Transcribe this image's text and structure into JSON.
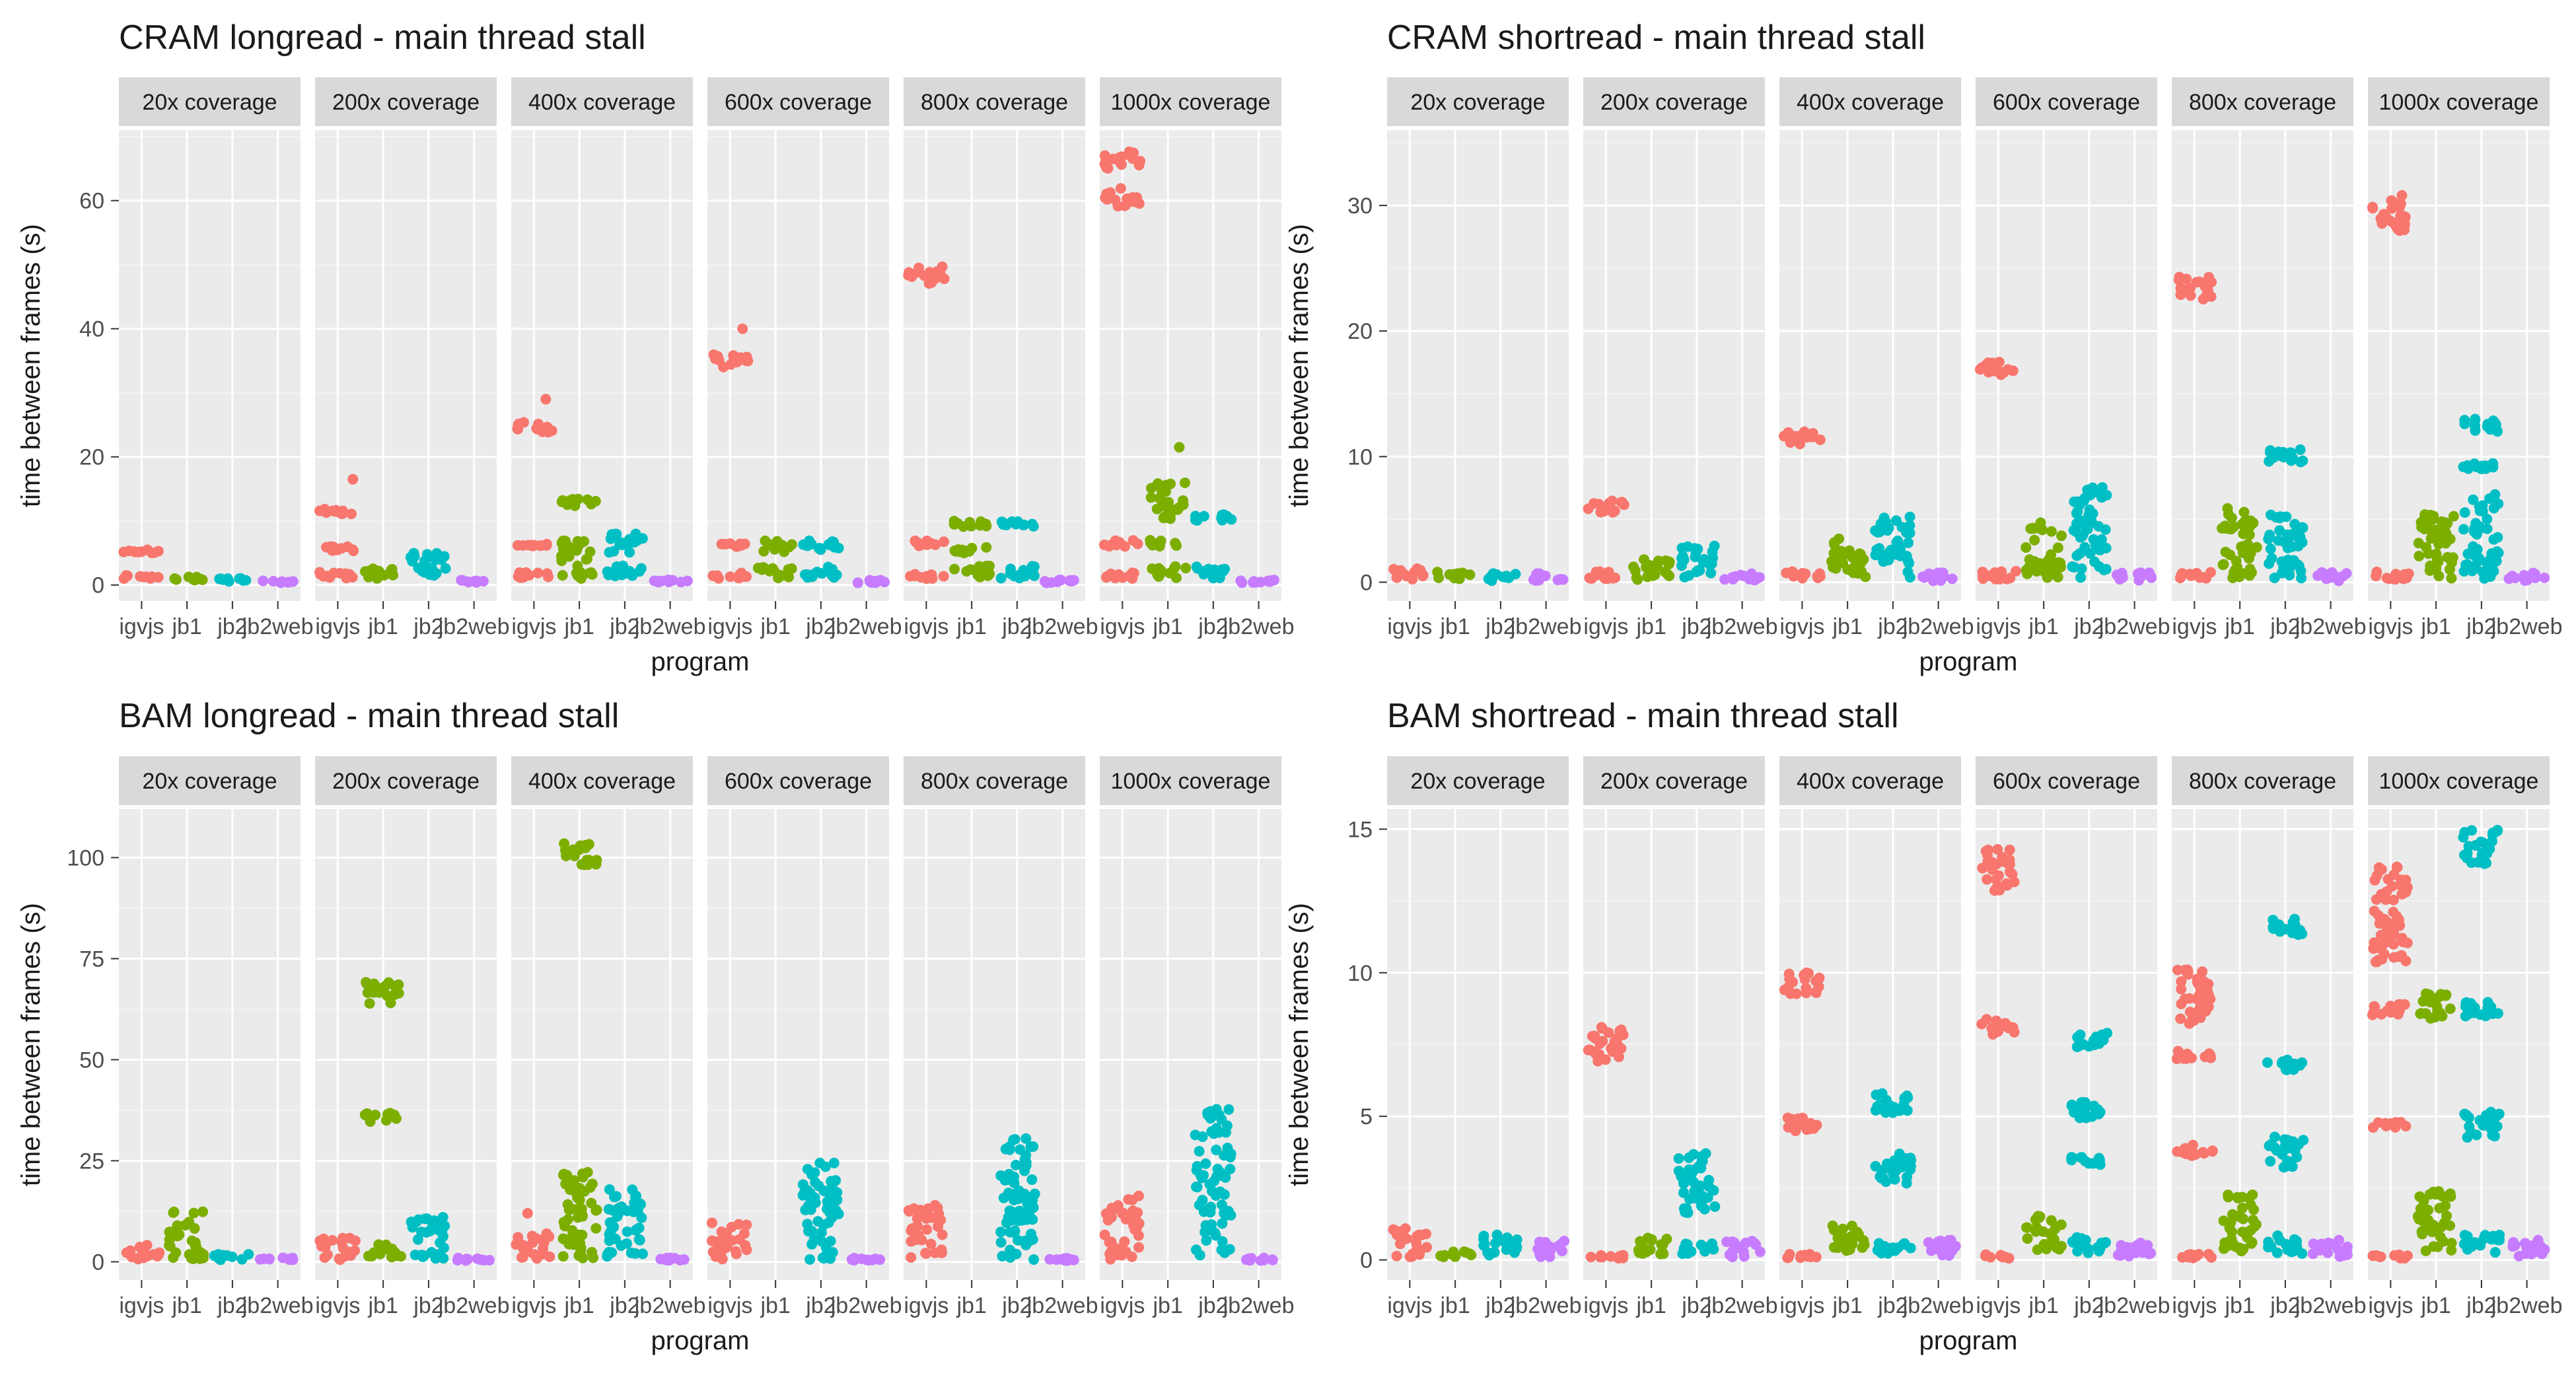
{
  "colors": {
    "panel_bg": "#ebebeb",
    "strip_bg": "#d9d9d9",
    "grid_major": "#ffffff",
    "grid_minor": "#f4f4f4",
    "text": "#1a1a1a",
    "axis_text": "#4d4d4d",
    "programs": {
      "igvjs": "#f8766d",
      "jb1": "#7cae00",
      "jb2": "#00bfc4",
      "jb2web": "#c77cff"
    }
  },
  "chart_data": [
    {
      "type": "scatter",
      "title": "CRAM longread - main thread stall",
      "xlabel": "program",
      "ylabel": "time between frames (s)",
      "categories": [
        "igvjs",
        "jb1",
        "jb2",
        "jb2web"
      ],
      "facets": [
        "20x coverage",
        "200x coverage",
        "400x coverage",
        "600x coverage",
        "800x coverage",
        "1000x coverage"
      ],
      "ylim": [
        -2.5,
        71
      ],
      "yticks": [
        0,
        20,
        40,
        60
      ],
      "clusters": [
        [
          [
            [
              1,
              1.5
            ],
            [
              5,
              5.5
            ]
          ],
          [
            [
              0.5,
              1.3
            ]
          ],
          [
            [
              0.5,
              1.1
            ]
          ],
          [
            [
              0.3,
              0.7
            ]
          ]
        ],
        [
          [
            [
              1,
              2
            ],
            [
              5,
              6
            ],
            [
              11,
              12
            ],
            [
              16.5,
              16.5
            ]
          ],
          [
            [
              1,
              3
            ]
          ],
          [
            [
              1,
              5
            ]
          ],
          [
            [
              0.3,
              0.8
            ]
          ]
        ],
        [
          [
            [
              1,
              2
            ],
            [
              6,
              6.5
            ],
            [
              23.5,
              25.5
            ],
            [
              29,
              29
            ]
          ],
          [
            [
              1,
              2
            ],
            [
              3,
              7
            ],
            [
              12,
              13.5
            ]
          ],
          [
            [
              1,
              3
            ],
            [
              5,
              8
            ]
          ],
          [
            [
              0.3,
              0.8
            ]
          ]
        ],
        [
          [
            [
              1,
              2
            ],
            [
              6,
              6.5
            ],
            [
              34,
              36
            ],
            [
              40,
              40
            ]
          ],
          [
            [
              1,
              3
            ],
            [
              5,
              7
            ]
          ],
          [
            [
              1,
              3
            ],
            [
              5,
              7
            ]
          ],
          [
            [
              0.3,
              0.8
            ]
          ]
        ],
        [
          [
            [
              1,
              2
            ],
            [
              6,
              7
            ],
            [
              47,
              50
            ]
          ],
          [
            [
              1,
              3
            ],
            [
              5,
              6
            ],
            [
              9,
              10
            ]
          ],
          [
            [
              1,
              3
            ],
            [
              9,
              10
            ]
          ],
          [
            [
              0.3,
              0.8
            ]
          ]
        ],
        [
          [
            [
              1,
              2
            ],
            [
              6,
              7
            ],
            [
              59,
              62
            ],
            [
              65,
              68
            ]
          ],
          [
            [
              1,
              3
            ],
            [
              6,
              7
            ],
            [
              10,
              16
            ],
            [
              21.5,
              21.5
            ]
          ],
          [
            [
              1,
              3
            ],
            [
              10,
              11
            ]
          ],
          [
            [
              0.3,
              0.8
            ]
          ]
        ]
      ]
    },
    {
      "type": "scatter",
      "title": "CRAM shortread - main thread stall",
      "xlabel": "program",
      "ylabel": "time between frames (s)",
      "categories": [
        "igvjs",
        "jb1",
        "jb2",
        "jb2web"
      ],
      "facets": [
        "20x coverage",
        "200x coverage",
        "400x coverage",
        "600x coverage",
        "800x coverage",
        "1000x coverage"
      ],
      "ylim": [
        -1.5,
        36
      ],
      "yticks": [
        0,
        10,
        20,
        30
      ],
      "clusters": [
        [
          [
            [
              0.2,
              1.2
            ]
          ],
          [
            [
              0.1,
              0.9
            ]
          ],
          [
            [
              0.1,
              0.7
            ]
          ],
          [
            [
              0.1,
              0.7
            ]
          ]
        ],
        [
          [
            [
              0.2,
              0.9
            ],
            [
              5.5,
              6.6
            ]
          ],
          [
            [
              0.2,
              2.2
            ]
          ],
          [
            [
              0.3,
              2.9
            ]
          ],
          [
            [
              0.1,
              0.8
            ]
          ]
        ],
        [
          [
            [
              0.2,
              0.9
            ],
            [
              11,
              12
            ]
          ],
          [
            [
              0.3,
              3.5
            ]
          ],
          [
            [
              0.3,
              5.2
            ]
          ],
          [
            [
              0.1,
              0.8
            ]
          ]
        ],
        [
          [
            [
              0.2,
              0.9
            ],
            [
              16.5,
              17.8
            ]
          ],
          [
            [
              0.3,
              5.2
            ]
          ],
          [
            [
              0.3,
              7.8
            ]
          ],
          [
            [
              0.1,
              0.8
            ]
          ]
        ],
        [
          [
            [
              0.2,
              0.9
            ],
            [
              22.5,
              24.3
            ]
          ],
          [
            [
              0.3,
              6
            ]
          ],
          [
            [
              0.3,
              5.5
            ],
            [
              9.5,
              10.7
            ]
          ],
          [
            [
              0.1,
              0.8
            ]
          ]
        ],
        [
          [
            [
              0.2,
              0.9
            ],
            [
              28,
              31
            ]
          ],
          [
            [
              0.3,
              5.6
            ]
          ],
          [
            [
              0.3,
              7
            ],
            [
              9,
              9.5
            ],
            [
              12,
              13
            ]
          ],
          [
            [
              0.1,
              0.8
            ]
          ]
        ]
      ]
    },
    {
      "type": "scatter",
      "title": "BAM longread - main thread stall",
      "xlabel": "program",
      "ylabel": "time between frames (s)",
      "categories": [
        "igvjs",
        "jb1",
        "jb2",
        "jb2web"
      ],
      "facets": [
        "20x coverage",
        "200x coverage",
        "400x coverage",
        "600x coverage",
        "800x coverage",
        "1000x coverage"
      ],
      "ylim": [
        -4.5,
        112
      ],
      "yticks": [
        0,
        25,
        50,
        75,
        100
      ],
      "clusters": [
        [
          [
            [
              0.5,
              4.5
            ]
          ],
          [
            [
              0.5,
              13
            ]
          ],
          [
            [
              0.5,
              2
            ]
          ],
          [
            [
              0.3,
              1
            ]
          ]
        ],
        [
          [
            [
              0.5,
              6
            ]
          ],
          [
            [
              0.5,
              5
            ],
            [
              34.5,
              37
            ],
            [
              63.5,
              69.5
            ]
          ],
          [
            [
              0.5,
              12
            ]
          ],
          [
            [
              0.3,
              1
            ]
          ]
        ],
        [
          [
            [
              0.5,
              7
            ],
            [
              12,
              12
            ]
          ],
          [
            [
              0.5,
              23
            ],
            [
              98,
              103.5
            ]
          ],
          [
            [
              0.5,
              18
            ]
          ],
          [
            [
              0.3,
              1
            ]
          ]
        ],
        [
          [
            [
              0.5,
              10
            ]
          ],
          [],
          [
            [
              0.5,
              24.5
            ]
          ],
          [
            [
              0.3,
              1
            ]
          ]
        ],
        [
          [
            [
              0.5,
              14
            ]
          ],
          [],
          [
            [
              0.5,
              31.5
            ]
          ],
          [
            [
              0.3,
              1
            ]
          ]
        ],
        [
          [
            [
              0.5,
              16.5
            ]
          ],
          [],
          [
            [
              0.5,
              38.5
            ]
          ],
          [
            [
              0.3,
              1
            ]
          ]
        ]
      ]
    },
    {
      "type": "scatter",
      "title": "BAM shortread - main thread stall",
      "xlabel": "program",
      "ylabel": "time between frames (s)",
      "categories": [
        "igvjs",
        "jb1",
        "jb2",
        "jb2web"
      ],
      "facets": [
        "20x coverage",
        "200x coverage",
        "400x coverage",
        "600x coverage",
        "800x coverage",
        "1000x coverage"
      ],
      "ylim": [
        -0.7,
        15.7
      ],
      "yticks": [
        0,
        5,
        10,
        15
      ],
      "clusters": [
        [
          [
            [
              0.1,
              1.1
            ]
          ],
          [
            [
              0.1,
              0.3
            ]
          ],
          [
            [
              0.1,
              0.9
            ]
          ],
          [
            [
              0.1,
              0.7
            ]
          ]
        ],
        [
          [
            [
              0.05,
              0.2
            ],
            [
              6.8,
              8.1
            ]
          ],
          [
            [
              0.2,
              0.8
            ]
          ],
          [
            [
              0.2,
              0.6
            ],
            [
              1.6,
              3.8
            ]
          ],
          [
            [
              0.1,
              0.7
            ]
          ]
        ],
        [
          [
            [
              0.05,
              0.2
            ],
            [
              4.4,
              5.1
            ],
            [
              9.2,
              10
            ]
          ],
          [
            [
              0.3,
              1.2
            ]
          ],
          [
            [
              0.2,
              0.6
            ],
            [
              2.6,
              3.7
            ],
            [
              5,
              5.8
            ]
          ],
          [
            [
              0.1,
              0.7
            ]
          ]
        ],
        [
          [
            [
              0.05,
              0.2
            ],
            [
              7.8,
              8.4
            ],
            [
              12.8,
              14.3
            ]
          ],
          [
            [
              0.3,
              1.6
            ]
          ],
          [
            [
              0.2,
              0.9
            ],
            [
              3.3,
              3.6
            ],
            [
              4.9,
              5.5
            ],
            [
              7.4,
              7.9
            ]
          ],
          [
            [
              0.1,
              0.7
            ]
          ]
        ],
        [
          [
            [
              0.05,
              0.2
            ],
            [
              3.6,
              4
            ],
            [
              7,
              7.3
            ],
            [
              8.2,
              10.2
            ]
          ],
          [
            [
              0.3,
              2.3
            ]
          ],
          [
            [
              0.2,
              0.9
            ],
            [
              3.2,
              4.3
            ],
            [
              6.6,
              7
            ],
            [
              11.3,
              11.9
            ]
          ],
          [
            [
              0.1,
              0.7
            ]
          ]
        ],
        [
          [
            [
              0.05,
              0.2
            ],
            [
              4.6,
              4.8
            ],
            [
              8.5,
              8.9
            ],
            [
              10.3,
              13.7
            ]
          ],
          [
            [
              0.3,
              2.6
            ],
            [
              8.4,
              9.3
            ]
          ],
          [
            [
              0.2,
              0.9
            ],
            [
              4.2,
              5.2
            ],
            [
              8.4,
              9
            ],
            [
              13.7,
              15
            ]
          ],
          [
            [
              0.1,
              0.7
            ]
          ]
        ]
      ]
    }
  ]
}
